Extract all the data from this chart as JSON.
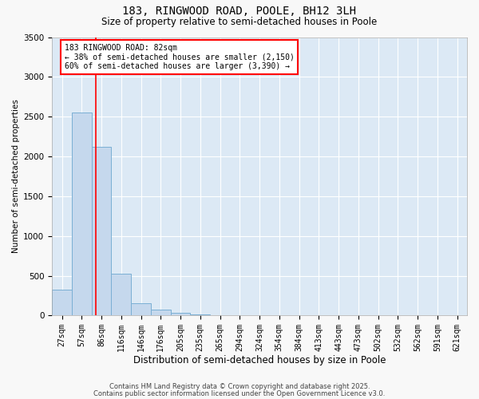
{
  "title1": "183, RINGWOOD ROAD, POOLE, BH12 3LH",
  "title2": "Size of property relative to semi-detached houses in Poole",
  "xlabel": "Distribution of semi-detached houses by size in Poole",
  "ylabel": "Number of semi-detached properties",
  "bar_color": "#c5d8ed",
  "bar_edge_color": "#7aafd4",
  "background_color": "#dce9f5",
  "grid_color": "#ffffff",
  "bin_labels": [
    "27sqm",
    "57sqm",
    "86sqm",
    "116sqm",
    "146sqm",
    "176sqm",
    "205sqm",
    "235sqm",
    "265sqm",
    "294sqm",
    "324sqm",
    "354sqm",
    "384sqm",
    "413sqm",
    "443sqm",
    "473sqm",
    "502sqm",
    "532sqm",
    "562sqm",
    "591sqm",
    "621sqm"
  ],
  "bar_values": [
    320,
    2550,
    2120,
    525,
    150,
    70,
    35,
    10,
    0,
    0,
    0,
    0,
    0,
    0,
    0,
    0,
    0,
    0,
    0,
    0,
    0
  ],
  "red_line_x": 1.72,
  "annotation_text": "183 RINGWOOD ROAD: 82sqm\n← 38% of semi-detached houses are smaller (2,150)\n60% of semi-detached houses are larger (3,390) →",
  "ylim": [
    0,
    3500
  ],
  "yticks": [
    0,
    500,
    1000,
    1500,
    2000,
    2500,
    3000,
    3500
  ],
  "footer1": "Contains HM Land Registry data © Crown copyright and database right 2025.",
  "footer2": "Contains public sector information licensed under the Open Government Licence v3.0."
}
